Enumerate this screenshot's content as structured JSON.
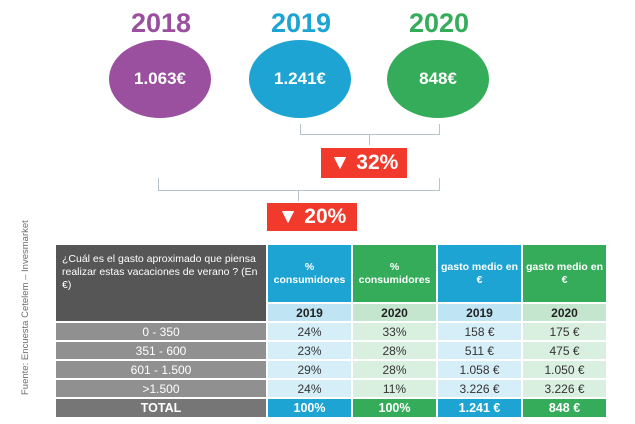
{
  "chart_data": {
    "type": "table",
    "years": [
      {
        "label": "2018",
        "value": "1.063€",
        "color": "#9b4f9f"
      },
      {
        "label": "2019",
        "value": "1.241€",
        "color": "#1da4d3"
      },
      {
        "label": "2020",
        "value": "848€",
        "color": "#34ac59"
      }
    ],
    "change_2019_2020": "▼ 32%",
    "change_2018_2020": "▼ 20%",
    "source": "Fuente: Encuesta Cetelem – Invesmarket",
    "question": "¿Cuál es el gasto aproximado que piensa realizar estas vacaciones de verano ? (En €)",
    "columns": [
      {
        "header": "% consumidores",
        "year": "2019"
      },
      {
        "header": "% consumidores",
        "year": "2020"
      },
      {
        "header": "gasto medio en €",
        "year": "2019"
      },
      {
        "header": "gasto medio en €",
        "year": "2020"
      }
    ],
    "rows": [
      {
        "label": "0 - 350",
        "values": [
          "24%",
          "33%",
          "158 €",
          "175 €"
        ]
      },
      {
        "label": "351 - 600",
        "values": [
          "23%",
          "28%",
          "511 €",
          "475 €"
        ]
      },
      {
        "label": "601 - 1.500",
        "values": [
          "29%",
          "28%",
          "1.058 €",
          "1.050 €"
        ]
      },
      {
        "label": ">1.500",
        "values": [
          "24%",
          "11%",
          "3.226 €",
          "3.226 €"
        ]
      }
    ],
    "total": {
      "label": "TOTAL",
      "values": [
        "100%",
        "100%",
        "1.241 €",
        "848 €"
      ]
    }
  }
}
